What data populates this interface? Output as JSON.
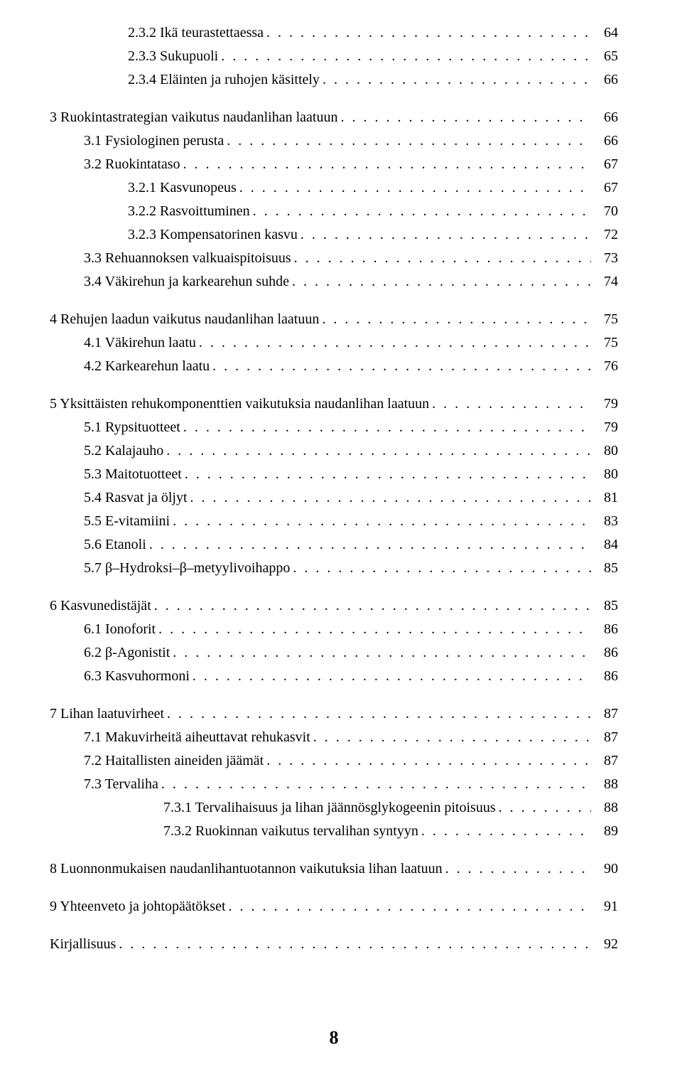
{
  "page_footer": "8",
  "entries": [
    {
      "indent": 2,
      "label": "2.3.2 Ikä teurastettaessa",
      "page": "64"
    },
    {
      "indent": 2,
      "label": "2.3.3 Sukupuoli",
      "page": "65"
    },
    {
      "indent": 2,
      "label": "2.3.4 Eläinten ja ruhojen käsittely",
      "page": "66"
    },
    {
      "gap": true
    },
    {
      "indent": 0,
      "label": "3 Ruokintastrategian vaikutus naudanlihan laatuun",
      "page": "66"
    },
    {
      "indent": 1,
      "label": "3.1 Fysiologinen perusta",
      "page": "66"
    },
    {
      "indent": 1,
      "label": "3.2 Ruokintataso",
      "page": "67"
    },
    {
      "indent": 2,
      "label": "3.2.1 Kasvunopeus",
      "page": "67"
    },
    {
      "indent": 2,
      "label": "3.2.2 Rasvoittuminen",
      "page": "70"
    },
    {
      "indent": 2,
      "label": "3.2.3 Kompensatorinen kasvu",
      "page": "72"
    },
    {
      "indent": 1,
      "label": "3.3 Rehuannoksen valkuaispitoisuus",
      "page": "73"
    },
    {
      "indent": 1,
      "label": "3.4 Väkirehun ja karkearehun suhde",
      "page": "74"
    },
    {
      "gap": true
    },
    {
      "indent": 0,
      "label": "4 Rehujen laadun vaikutus naudanlihan laatuun",
      "page": "75"
    },
    {
      "indent": 1,
      "label": "4.1 Väkirehun laatu",
      "page": "75"
    },
    {
      "indent": 1,
      "label": "4.2 Karkearehun laatu",
      "page": "76"
    },
    {
      "gap": true
    },
    {
      "indent": 0,
      "label": "5 Yksittäisten rehukomponenttien vaikutuksia naudanlihan laatuun",
      "page": "79"
    },
    {
      "indent": 1,
      "label": "5.1 Rypsituotteet",
      "page": "79"
    },
    {
      "indent": 1,
      "label": "5.2 Kalajauho",
      "page": "80"
    },
    {
      "indent": 1,
      "label": "5.3 Maitotuotteet",
      "page": "80"
    },
    {
      "indent": 1,
      "label": "5.4 Rasvat ja öljyt",
      "page": "81"
    },
    {
      "indent": 1,
      "label": "5.5 E-vitamiini",
      "page": "83"
    },
    {
      "indent": 1,
      "label": "5.6 Etanoli",
      "page": "84"
    },
    {
      "indent": 1,
      "label": "5.7 β–Hydroksi–β–metyylivoihappo",
      "page": "85"
    },
    {
      "gap": true
    },
    {
      "indent": 0,
      "label": "6 Kasvunedistäjät",
      "page": "85"
    },
    {
      "indent": 1,
      "label": "6.1 Ionoforit",
      "page": "86"
    },
    {
      "indent": 1,
      "label": "6.2 β-Agonistit",
      "page": "86"
    },
    {
      "indent": 1,
      "label": "6.3 Kasvuhormoni",
      "page": "86"
    },
    {
      "gap": true
    },
    {
      "indent": 0,
      "label": "7 Lihan laatuvirheet",
      "page": "87"
    },
    {
      "indent": 1,
      "label": "7.1 Makuvirheitä aiheuttavat rehukasvit",
      "page": "87"
    },
    {
      "indent": 1,
      "label": "7.2 Haitallisten aineiden jäämät",
      "page": "87"
    },
    {
      "indent": 1,
      "label": "7.3 Tervaliha",
      "page": "88"
    },
    {
      "indent": 3,
      "label": "7.3.1 Tervalihaisuus ja lihan jäännösglykogeenin pitoisuus",
      "page": "88"
    },
    {
      "indent": 3,
      "label": "7.3.2 Ruokinnan vaikutus tervalihan syntyyn",
      "page": "89"
    },
    {
      "gap": true
    },
    {
      "indent": 0,
      "label": "8 Luonnonmukaisen naudanlihantuotannon vaikutuksia lihan laatuun",
      "page": "90"
    },
    {
      "gap": true
    },
    {
      "indent": 0,
      "label": "9 Yhteenveto ja johtopäätökset",
      "page": "91"
    },
    {
      "gap": true
    },
    {
      "indent": 0,
      "label": "Kirjallisuus",
      "page": "92"
    }
  ]
}
